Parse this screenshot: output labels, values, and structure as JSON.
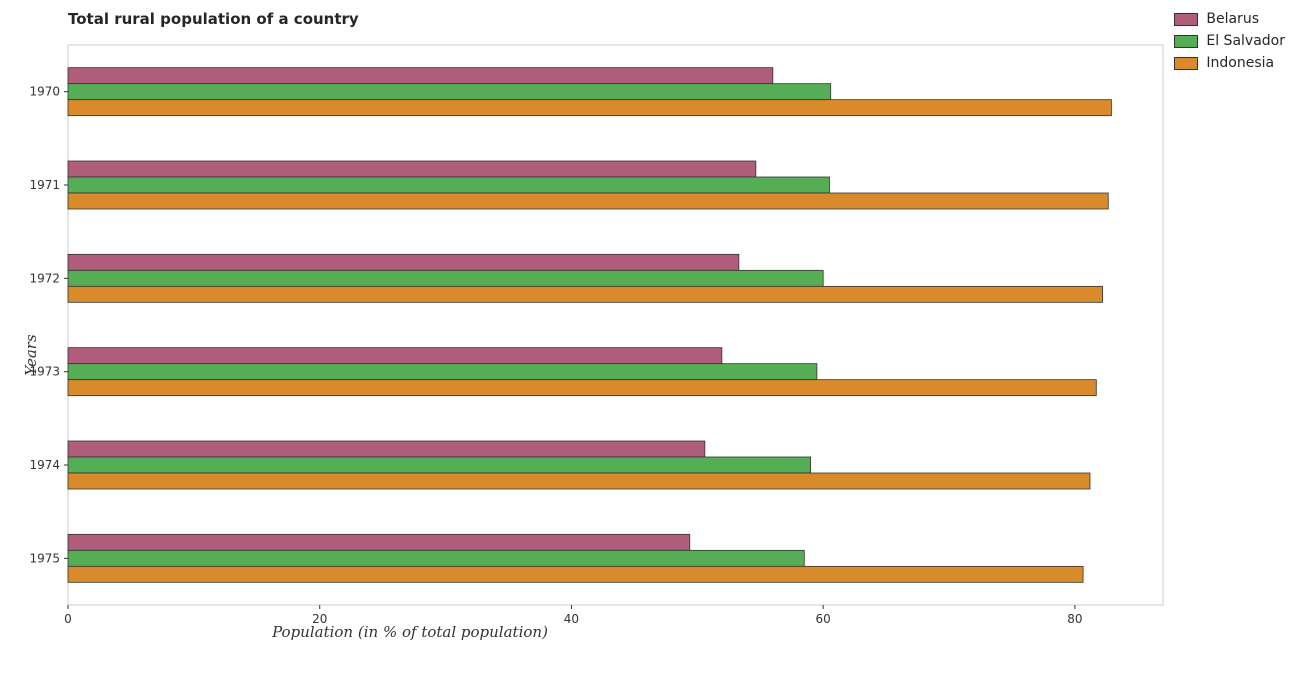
{
  "chart_data": {
    "type": "bar",
    "orientation": "horizontal",
    "title": "Total rural population of a country",
    "xlabel": "Population (in % of total population)",
    "ylabel": "Years",
    "categories": [
      "1970",
      "1971",
      "1972",
      "1973",
      "1974",
      "1975"
    ],
    "series": [
      {
        "name": "Belarus",
        "color": "#b05d7b",
        "values": [
          56.0,
          54.65,
          53.3,
          51.95,
          50.6,
          49.4
        ]
      },
      {
        "name": "El Salvador",
        "color": "#55ad55",
        "values": [
          60.6,
          60.5,
          60.0,
          59.5,
          59.0,
          58.5
        ]
      },
      {
        "name": "Indonesia",
        "color": "#d98b2b",
        "values": [
          82.9,
          82.65,
          82.2,
          81.7,
          81.2,
          80.65
        ]
      }
    ],
    "xlim": [
      0,
      87
    ],
    "xticks": [
      0,
      20,
      40,
      60,
      80
    ],
    "grid": false,
    "legend_position": "top-right"
  }
}
